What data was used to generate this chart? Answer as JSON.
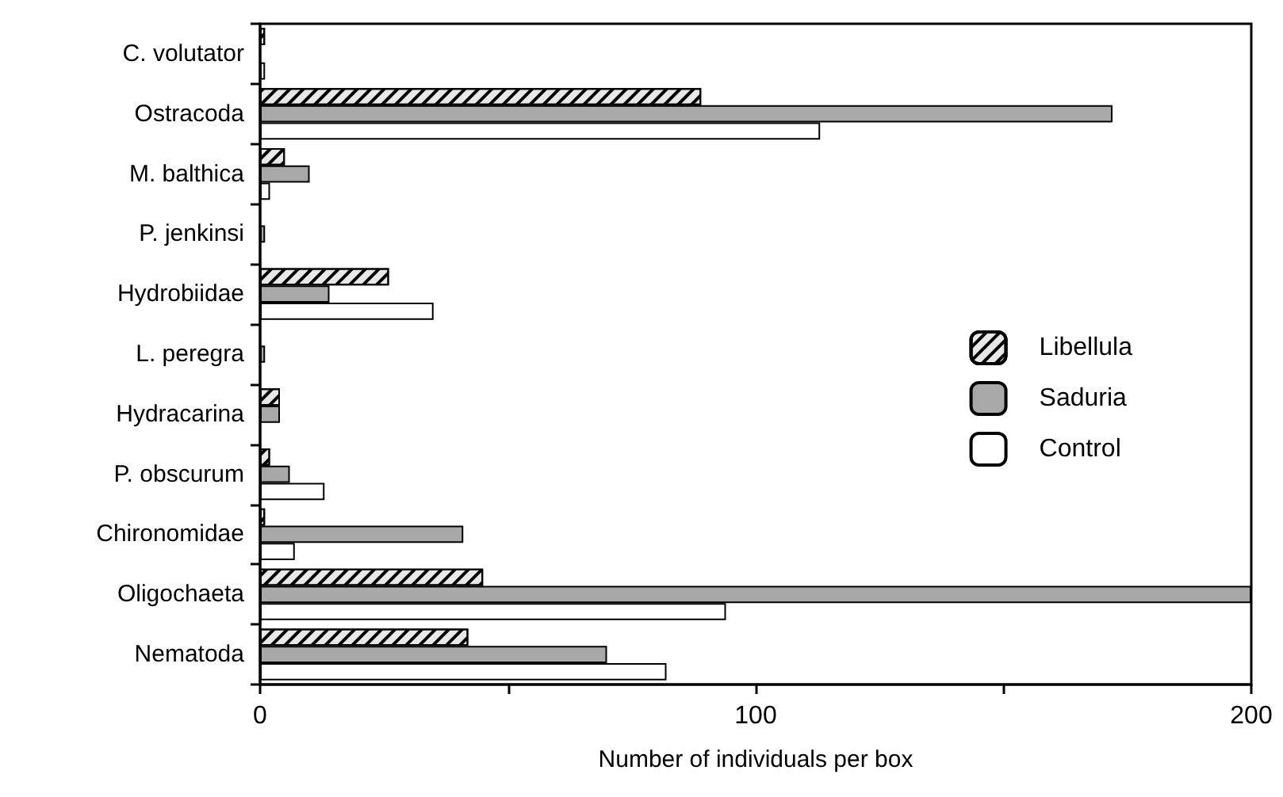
{
  "chart_data": {
    "type": "bar",
    "orientation": "horizontal",
    "xlabel": "Number of individuals per box",
    "categories": [
      "C. volutator",
      "Ostracoda",
      "M. balthica",
      "P. jenkinsi",
      "Hydrobiidae",
      "L. peregra",
      "Hydracarina",
      "P. obscurum",
      "Chironomidae",
      "Oligochaeta",
      "Nematoda"
    ],
    "series": [
      {
        "name": "Libellula",
        "color": "#e8e8e8",
        "values": [
          1,
          89,
          5,
          0,
          26,
          0,
          4,
          2,
          1,
          45,
          42
        ]
      },
      {
        "name": "Saduria",
        "color": "#a8a8a8",
        "values": [
          0,
          172,
          10,
          1,
          14,
          1,
          4,
          6,
          41,
          200,
          70
        ]
      },
      {
        "name": "Control",
        "color": "#ffffff",
        "values": [
          1,
          113,
          2,
          0,
          35,
          0,
          0,
          13,
          7,
          94,
          82
        ]
      }
    ],
    "xlim": [
      0,
      200
    ],
    "xticks": [
      0,
      {
        "value": 50,
        "label": null
      },
      100,
      {
        "value": 150,
        "label": null
      },
      200
    ],
    "legend": "right",
    "grid": false
  }
}
